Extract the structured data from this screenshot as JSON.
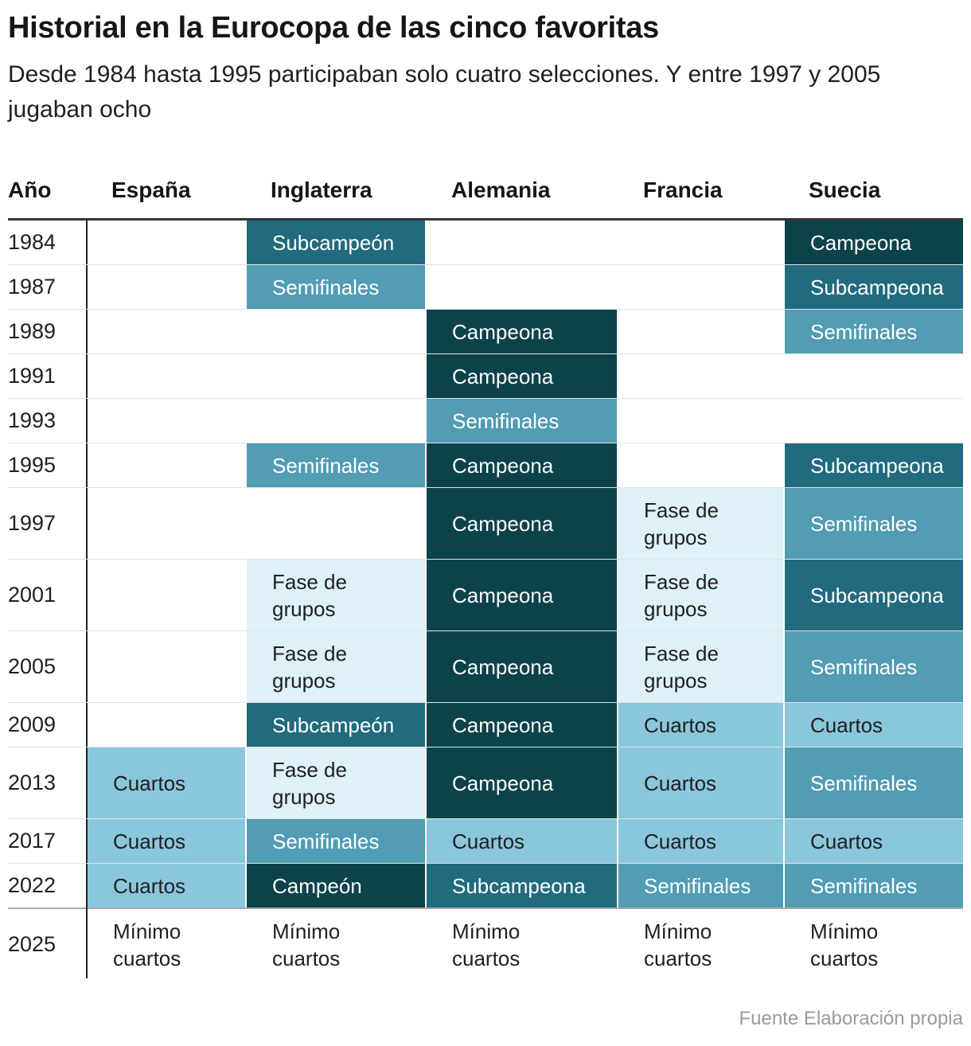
{
  "title": "Historial en la Eurocopa de las cinco favoritas",
  "subtitle": "Desde 1984 hasta 1995 participaban solo cuatro selecciones. Y entre 1997 y 2005 jugaban ocho",
  "source": "Fuente Elaboración propia",
  "colors": {
    "Campeona": "#0c434b",
    "Campeón": "#0c434b",
    "Subcampeón": "#226b7e",
    "Subcampeona": "#226b7e",
    "Semifinales": "#529cb4",
    "Cuartos": "#8ac6dc",
    "Fase de grupos": "#dff1f8",
    "Mínimo cuartos": "#ffffff"
  },
  "chart_data": {
    "type": "table",
    "year_header": "Año",
    "teams": [
      "España",
      "Inglaterra",
      "Alemania",
      "Francia",
      "Suecia"
    ],
    "rows": [
      {
        "year": "1984",
        "results": [
          "",
          "Subcampeón",
          "",
          "",
          "Campeona"
        ]
      },
      {
        "year": "1987",
        "results": [
          "",
          "Semifinales",
          "",
          "",
          "Subcampeona"
        ]
      },
      {
        "year": "1989",
        "results": [
          "",
          "",
          "Campeona",
          "",
          "Semifinales"
        ]
      },
      {
        "year": "1991",
        "results": [
          "",
          "",
          "Campeona",
          "",
          ""
        ]
      },
      {
        "year": "1993",
        "results": [
          "",
          "",
          "Semifinales",
          "",
          ""
        ]
      },
      {
        "year": "1995",
        "results": [
          "",
          "Semifinales",
          "Campeona",
          "",
          "Subcampeona"
        ]
      },
      {
        "year": "1997",
        "results": [
          "",
          "",
          "Campeona",
          "Fase de grupos",
          "Semifinales"
        ]
      },
      {
        "year": "2001",
        "results": [
          "",
          "Fase de grupos",
          "Campeona",
          "Fase de grupos",
          "Subcampeona"
        ]
      },
      {
        "year": "2005",
        "results": [
          "",
          "Fase de grupos",
          "Campeona",
          "Fase de grupos",
          "Semifinales"
        ]
      },
      {
        "year": "2009",
        "results": [
          "",
          "Subcampeón",
          "Campeona",
          "Cuartos",
          "Cuartos"
        ]
      },
      {
        "year": "2013",
        "results": [
          "Cuartos",
          "Fase de grupos",
          "Campeona",
          "Cuartos",
          "Semifinales"
        ]
      },
      {
        "year": "2017",
        "results": [
          "Cuartos",
          "Semifinales",
          "Cuartos",
          "Cuartos",
          "Cuartos"
        ]
      },
      {
        "year": "2022",
        "results": [
          "Cuartos",
          "Campeón",
          "Subcampeona",
          "Semifinales",
          "Semifinales"
        ]
      },
      {
        "year": "2025",
        "results": [
          "Mínimo cuartos",
          "Mínimo cuartos",
          "Mínimo cuartos",
          "Mínimo cuartos",
          "Mínimo cuartos"
        ]
      }
    ]
  }
}
